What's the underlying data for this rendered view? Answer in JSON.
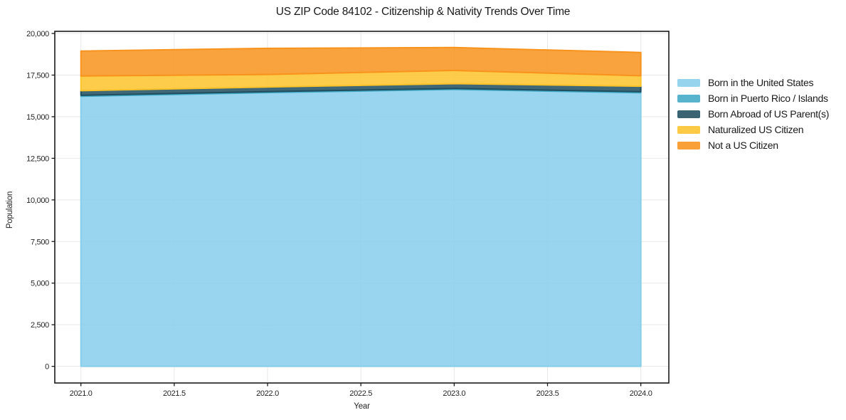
{
  "chart": {
    "title": "US ZIP Code 84102 - Citizenship & Nativity Trends Over Time",
    "xlabel": "Year",
    "ylabel": "Population"
  },
  "colors": {
    "grid": "#e8e8e8",
    "spine": "#1a1a1a",
    "tick_text": "#262626",
    "background": "#ffffff"
  },
  "chart_data": {
    "type": "area",
    "stacked": true,
    "title": "US ZIP Code 84102 - Citizenship & Nativity Trends Over Time",
    "xlabel": "Year",
    "ylabel": "Population",
    "grid": true,
    "legend_position": "right-outside",
    "fill_alpha": 0.85,
    "x": [
      2021,
      2022,
      2023,
      2024
    ],
    "series": [
      {
        "name": "Born in the United States",
        "color": "#87CEEB",
        "values": [
          16220,
          16440,
          16630,
          16430
        ]
      },
      {
        "name": "Born in Puerto Rico / Islands",
        "color": "#41A9C6",
        "values": [
          65,
          65,
          65,
          70
        ]
      },
      {
        "name": "Born Abroad of US Parent(s)",
        "color": "#1F4E5F",
        "values": [
          280,
          280,
          290,
          330
        ]
      },
      {
        "name": "Naturalized US Citizen",
        "color": "#FDC32B",
        "values": [
          880,
          750,
          795,
          630
        ]
      },
      {
        "name": "Not a US Citizen",
        "color": "#F8931D",
        "values": [
          1500,
          1575,
          1375,
          1400
        ]
      }
    ],
    "totals": [
      18945,
      19110,
      19155,
      18860
    ],
    "xlim": [
      2020.86,
      2024.15
    ],
    "ylim": [
      -1000,
      20130
    ],
    "xticks": [
      {
        "v": 2021.0,
        "label": "2021.0"
      },
      {
        "v": 2021.5,
        "label": "2021.5"
      },
      {
        "v": 2022.0,
        "label": "2022.0"
      },
      {
        "v": 2022.5,
        "label": "2022.5"
      },
      {
        "v": 2023.0,
        "label": "2023.0"
      },
      {
        "v": 2023.5,
        "label": "2023.5"
      },
      {
        "v": 2024.0,
        "label": "2024.0"
      }
    ],
    "yticks": [
      {
        "v": 0,
        "label": "0"
      },
      {
        "v": 2500,
        "label": "2,500"
      },
      {
        "v": 5000,
        "label": "5,000"
      },
      {
        "v": 7500,
        "label": "7,500"
      },
      {
        "v": 10000,
        "label": "10,000"
      },
      {
        "v": 12500,
        "label": "12,500"
      },
      {
        "v": 15000,
        "label": "15,000"
      },
      {
        "v": 17500,
        "label": "17,500"
      },
      {
        "v": 20000,
        "label": "20,000"
      }
    ]
  }
}
